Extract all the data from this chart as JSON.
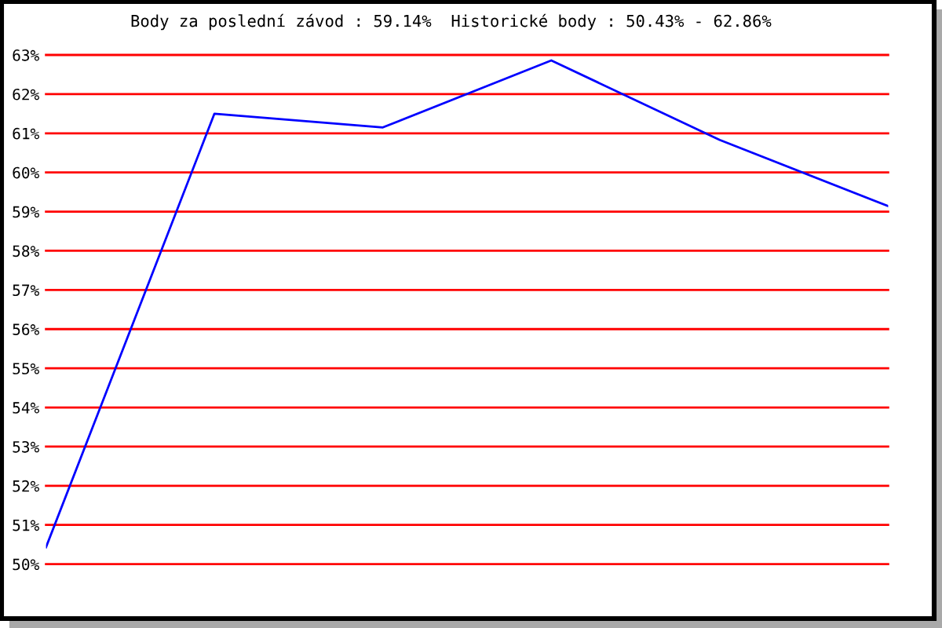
{
  "chart_data": {
    "type": "line",
    "title": "Body za poslední závod : 59.14%  Historické body : 50.43% - 62.86%",
    "categories": [
      null,
      null,
      null,
      null,
      null,
      null
    ],
    "series": [
      {
        "color": "#0000ff",
        "values": [
          50.43,
          61.5,
          61.15,
          62.86,
          60.83,
          59.14
        ]
      }
    ],
    "ylim": [
      50,
      63
    ],
    "yticks": [
      {
        "value": 50,
        "label": "50%"
      },
      {
        "value": 51,
        "label": "51%"
      },
      {
        "value": 52,
        "label": "52%"
      },
      {
        "value": 53,
        "label": "53%"
      },
      {
        "value": 54,
        "label": "54%"
      },
      {
        "value": 55,
        "label": "55%"
      },
      {
        "value": 56,
        "label": "56%"
      },
      {
        "value": 57,
        "label": "57%"
      },
      {
        "value": 58,
        "label": "58%"
      },
      {
        "value": 59,
        "label": "59%"
      },
      {
        "value": 60,
        "label": "60%"
      },
      {
        "value": 61,
        "label": "61%"
      },
      {
        "value": 62,
        "label": "62%"
      },
      {
        "value": 63,
        "label": "63%"
      }
    ],
    "grid": "y",
    "tick_labels": "y",
    "marker": "none",
    "line_style": "solid"
  }
}
